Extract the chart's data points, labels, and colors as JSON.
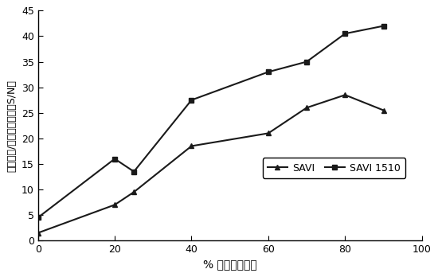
{
  "savi_x": [
    0,
    20,
    25,
    40,
    60,
    70,
    80,
    90
  ],
  "savi_y": [
    1.5,
    7.0,
    9.5,
    18.5,
    21.0,
    26.0,
    28.5,
    25.5
  ],
  "savi1510_x": [
    0,
    20,
    25,
    40,
    60,
    70,
    80,
    90
  ],
  "savi1510_y": [
    4.5,
    16.0,
    13.5,
    27.5,
    33.0,
    35.0,
    40.5,
    42.0
  ],
  "xlim": [
    0,
    100
  ],
  "ylim": [
    0,
    45
  ],
  "xticks": [
    0,
    20,
    40,
    60,
    80,
    100
  ],
  "yticks": [
    0,
    5,
    10,
    15,
    20,
    25,
    30,
    35,
    40,
    45
  ],
  "xlabel": "% 湿地被覆盖度",
  "ylabel": "模拟信号/土壤噪声比值（S/N）",
  "legend_savi": "SAVI",
  "legend_savi1510": "SAVI 1510",
  "line_color": "#1a1a1a",
  "bg_color": "#ffffff"
}
